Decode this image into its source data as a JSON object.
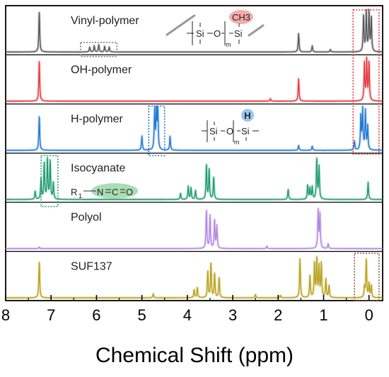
{
  "chart_data": {
    "type": "line",
    "xlabel": "Chemical Shift (ppm)",
    "xlim": [
      8,
      -0.3
    ],
    "x_ticks": [
      "8",
      "7",
      "6",
      "5",
      "4",
      "3",
      "2",
      "1",
      "0"
    ],
    "y_axis_labels_shown": false,
    "series": [
      {
        "name": "Vinyl-polymer",
        "color": "#555555",
        "peaks": [
          [
            7.26,
            1.0
          ],
          [
            6.15,
            0.12
          ],
          [
            6.05,
            0.15
          ],
          [
            5.95,
            0.18
          ],
          [
            5.82,
            0.14
          ],
          [
            5.72,
            0.12
          ],
          [
            1.55,
            0.45
          ],
          [
            1.25,
            0.15
          ],
          [
            0.85,
            0.06
          ],
          [
            0.12,
            0.9
          ],
          [
            0.06,
            1.0
          ],
          [
            0.0,
            1.0
          ],
          [
            -0.05,
            0.85
          ]
        ],
        "structure": {
          "si_1": "Si",
          "o": "O",
          "si_2": "Si",
          "m": "m",
          "substituent": "CH3"
        }
      },
      {
        "name": "OH-polymer",
        "color": "#e8363b",
        "peaks": [
          [
            7.26,
            1.0
          ],
          [
            2.17,
            0.06
          ],
          [
            1.55,
            0.55
          ],
          [
            0.1,
            0.95
          ],
          [
            0.05,
            1.0
          ],
          [
            0.0,
            0.95
          ]
        ]
      },
      {
        "name": "H-polymer",
        "color": "#2078d4",
        "peaks": [
          [
            7.26,
            0.85
          ],
          [
            5.0,
            0.35
          ],
          [
            4.72,
            1.0
          ],
          [
            4.68,
            1.0
          ],
          [
            4.65,
            0.95
          ],
          [
            4.38,
            0.35
          ],
          [
            1.55,
            0.12
          ],
          [
            1.25,
            0.1
          ],
          [
            0.32,
            0.22
          ],
          [
            0.18,
            0.85
          ],
          [
            0.14,
            1.0
          ],
          [
            0.08,
            0.95
          ],
          [
            0.03,
            0.6
          ]
        ],
        "structure": {
          "si_1": "Si",
          "o": "O",
          "si_2": "Si",
          "m": "m",
          "substituent": "H"
        }
      },
      {
        "name": "Isocyanate",
        "color": "#1a9a6e",
        "peaks": [
          [
            7.35,
            0.2
          ],
          [
            7.22,
            0.5
          ],
          [
            7.15,
            0.9
          ],
          [
            7.08,
            1.0
          ],
          [
            7.02,
            0.95
          ],
          [
            6.95,
            0.4
          ],
          [
            4.15,
            0.15
          ],
          [
            3.98,
            0.32
          ],
          [
            3.92,
            0.28
          ],
          [
            3.82,
            0.22
          ],
          [
            3.58,
            0.85
          ],
          [
            3.52,
            0.75
          ],
          [
            3.42,
            0.55
          ],
          [
            1.78,
            0.25
          ],
          [
            1.35,
            0.35
          ],
          [
            1.3,
            0.28
          ],
          [
            1.25,
            0.3
          ],
          [
            1.15,
            1.0
          ],
          [
            1.1,
            0.8
          ],
          [
            0.02,
            0.42
          ]
        ],
        "structure": {
          "r": "R",
          "r_sub": "1",
          "n": "N",
          "c": "C",
          "o": "O"
        }
      },
      {
        "name": "Polyol",
        "color": "#b085e0",
        "peaks": [
          [
            7.26,
            0.04
          ],
          [
            3.58,
            0.95
          ],
          [
            3.5,
            0.8
          ],
          [
            3.4,
            0.7
          ],
          [
            3.35,
            0.55
          ],
          [
            2.25,
            0.06
          ],
          [
            1.12,
            0.95
          ],
          [
            1.08,
            0.85
          ],
          [
            0.9,
            0.12
          ]
        ]
      },
      {
        "name": "SUF137",
        "color": "#b8a018",
        "peaks": [
          [
            7.26,
            0.9
          ],
          [
            4.75,
            0.1
          ],
          [
            3.85,
            0.2
          ],
          [
            3.78,
            0.25
          ],
          [
            3.55,
            0.65
          ],
          [
            3.48,
            0.85
          ],
          [
            3.4,
            0.6
          ],
          [
            3.3,
            0.5
          ],
          [
            2.5,
            0.08
          ],
          [
            1.95,
            0.06
          ],
          [
            1.52,
            0.95
          ],
          [
            1.3,
            0.55
          ],
          [
            1.2,
            0.85
          ],
          [
            1.15,
            0.95
          ],
          [
            1.1,
            0.75
          ],
          [
            1.05,
            0.85
          ],
          [
            0.95,
            0.45
          ],
          [
            0.88,
            0.3
          ],
          [
            0.1,
            0.25
          ],
          [
            0.06,
            0.95
          ],
          [
            0.0,
            0.35
          ],
          [
            -0.05,
            0.3
          ]
        ]
      }
    ]
  }
}
